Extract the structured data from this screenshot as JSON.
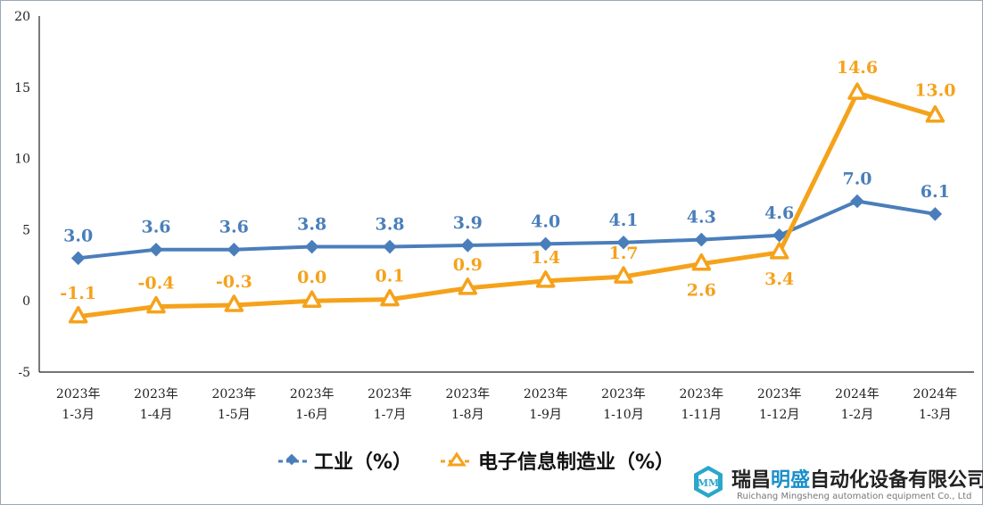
{
  "chart_data": {
    "type": "line",
    "categories": [
      [
        "2023年",
        "1-3月"
      ],
      [
        "2023年",
        "1-4月"
      ],
      [
        "2023年",
        "1-5月"
      ],
      [
        "2023年",
        "1-6月"
      ],
      [
        "2023年",
        "1-7月"
      ],
      [
        "2023年",
        "1-8月"
      ],
      [
        "2023年",
        "1-9月"
      ],
      [
        "2023年",
        "1-10月"
      ],
      [
        "2023年",
        "1-11月"
      ],
      [
        "2023年",
        "1-12月"
      ],
      [
        "2024年",
        "1-2月"
      ],
      [
        "2024年",
        "1-3月"
      ]
    ],
    "series": [
      {
        "name": "工业（%）",
        "color": "#4a7ebb",
        "marker": "diamond",
        "values": [
          3.0,
          3.6,
          3.6,
          3.8,
          3.8,
          3.9,
          4.0,
          4.1,
          4.3,
          4.6,
          7.0,
          6.1
        ],
        "labels": [
          "3.0",
          "3.6",
          "3.6",
          "3.8",
          "3.8",
          "3.9",
          "4.0",
          "4.1",
          "4.3",
          "4.6",
          "7.0",
          "6.1"
        ]
      },
      {
        "name": "电子信息制造业（%）",
        "color": "#f5a21b",
        "marker": "triangle",
        "values": [
          -1.1,
          -0.4,
          -0.3,
          0.0,
          0.1,
          0.9,
          1.4,
          1.7,
          2.6,
          3.4,
          14.6,
          13.0
        ],
        "labels": [
          "-1.1",
          "-0.4",
          "-0.3",
          "0.0",
          "0.1",
          "0.9",
          "1.4",
          "1.7",
          "2.6",
          "3.4",
          "14.6",
          "13.0"
        ]
      }
    ],
    "yticks": [
      "20",
      "15",
      "10",
      "5",
      "0",
      "-5"
    ],
    "ylim": [
      -5,
      20
    ],
    "legend_position": "bottom-center",
    "grid": false
  },
  "watermark": {
    "logo_icon": "mm-hexagon-logo-icon",
    "company_cn_part1": "瑞昌",
    "company_cn_part2": "明盛",
    "company_cn_part3": "自动化设备有限公司",
    "company_en": "Ruichang Mingsheng automation equipment Co., Ltd",
    "highlight_color": "#1a8fc9"
  }
}
